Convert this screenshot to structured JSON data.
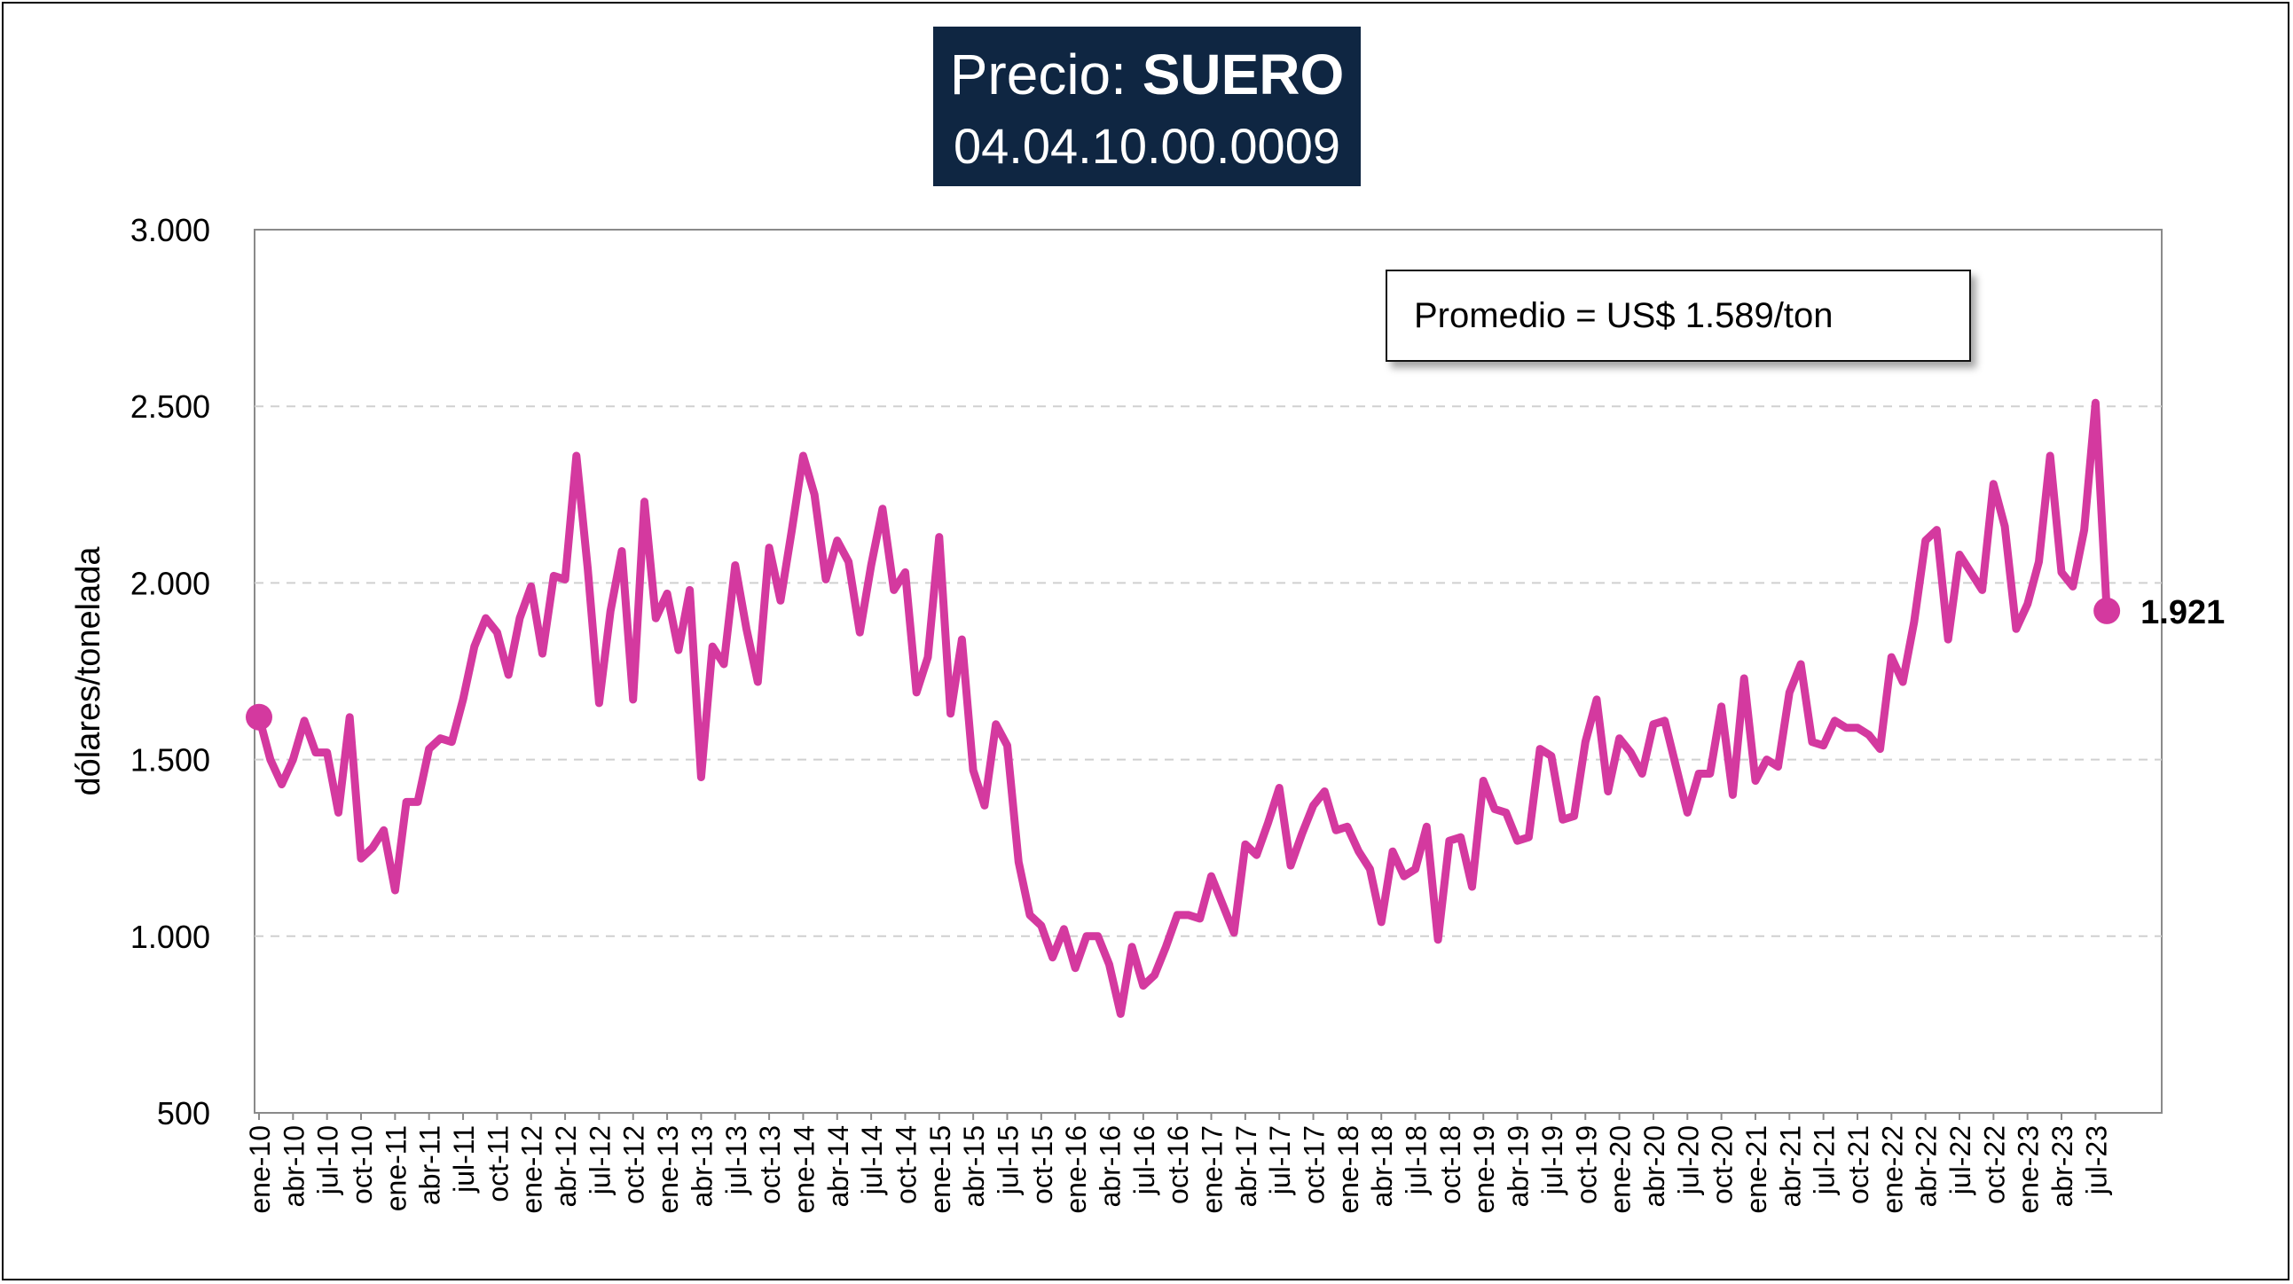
{
  "title": {
    "line1_prefix": "Precio: ",
    "line1_bold": "SUERO",
    "line2": "04.04.10.00.0009"
  },
  "annotation": "Promedio = US$ 1.589/ton",
  "colors": {
    "series": "#d4399f",
    "title_bg": "#0f2642",
    "grid": "#d0d0d0"
  },
  "chart_data": {
    "type": "line",
    "ylabel": "dólares/tonelada",
    "xlabel": "",
    "ylim": [
      500,
      3000
    ],
    "yticks": [
      "500",
      "1.000",
      "1.500",
      "2.000",
      "2.500",
      "3.000"
    ],
    "ytick_values": [
      500,
      1000,
      1500,
      2000,
      2500,
      3000
    ],
    "grid": "horizontal dashed",
    "xtick_labels": [
      "ene-10",
      "abr-10",
      "jul-10",
      "oct-10",
      "ene-11",
      "abr-11",
      "jul-11",
      "oct-11",
      "ene-12",
      "abr-12",
      "jul-12",
      "oct-12",
      "ene-13",
      "abr-13",
      "jul-13",
      "oct-13",
      "ene-14",
      "abr-14",
      "jul-14",
      "oct-14",
      "ene-15",
      "abr-15",
      "jul-15",
      "oct-15",
      "ene-16",
      "abr-16",
      "jul-16",
      "oct-16",
      "ene-17",
      "abr-17",
      "jul-17",
      "oct-17",
      "ene-18",
      "abr-18",
      "jul-18",
      "oct-18",
      "ene-19",
      "abr-19",
      "jul-19",
      "oct-19",
      "ene-20",
      "abr-20",
      "jul-20",
      "oct-20",
      "ene-21",
      "abr-21",
      "jul-21",
      "oct-21",
      "ene-22",
      "abr-22",
      "jul-22",
      "oct-22",
      "ene-23",
      "abr-23",
      "jul-23"
    ],
    "last_value_label": "1.921",
    "series": [
      {
        "values": [
          1620,
          1500,
          1430,
          1500,
          1610,
          1520,
          1520,
          1350,
          1620,
          1220,
          1250,
          1300,
          1130,
          1380,
          1380,
          1530,
          1560,
          1550,
          1670,
          1820,
          1900,
          1860,
          1740,
          1900,
          1990,
          1800,
          2020,
          2010,
          2360,
          2040,
          1660,
          1920,
          2090,
          1670,
          2230,
          1900,
          1970,
          1810,
          1980,
          1450,
          1820,
          1770,
          2050,
          1870,
          1720,
          2100,
          1950,
          2150,
          2360,
          2250,
          2010,
          2120,
          2060,
          1860,
          2050,
          2210,
          1980,
          2030,
          1690,
          1790,
          2130,
          1630,
          1840,
          1470,
          1370,
          1600,
          1540,
          1210,
          1060,
          1030,
          940,
          1020,
          910,
          1000,
          1000,
          920,
          780,
          970,
          860,
          890,
          970,
          1060,
          1060,
          1050,
          1170,
          1090,
          1010,
          1260,
          1230,
          1320,
          1420,
          1200,
          1290,
          1370,
          1410,
          1300,
          1310,
          1240,
          1190,
          1040,
          1240,
          1170,
          1190,
          1310,
          990,
          1270,
          1280,
          1140,
          1440,
          1360,
          1350,
          1270,
          1280,
          1530,
          1510,
          1330,
          1340,
          1550,
          1670,
          1410,
          1560,
          1520,
          1460,
          1600,
          1610,
          1480,
          1350,
          1460,
          1460,
          1650,
          1400,
          1730,
          1440,
          1500,
          1480,
          1690,
          1770,
          1550,
          1540,
          1610,
          1590,
          1590,
          1570,
          1530,
          1790,
          1720,
          1890,
          2120,
          2150,
          1840,
          2080,
          2030,
          1980,
          2280,
          2160,
          1870,
          1940,
          2060,
          2360,
          2030,
          1990,
          2150,
          2510,
          1921
        ]
      }
    ]
  }
}
